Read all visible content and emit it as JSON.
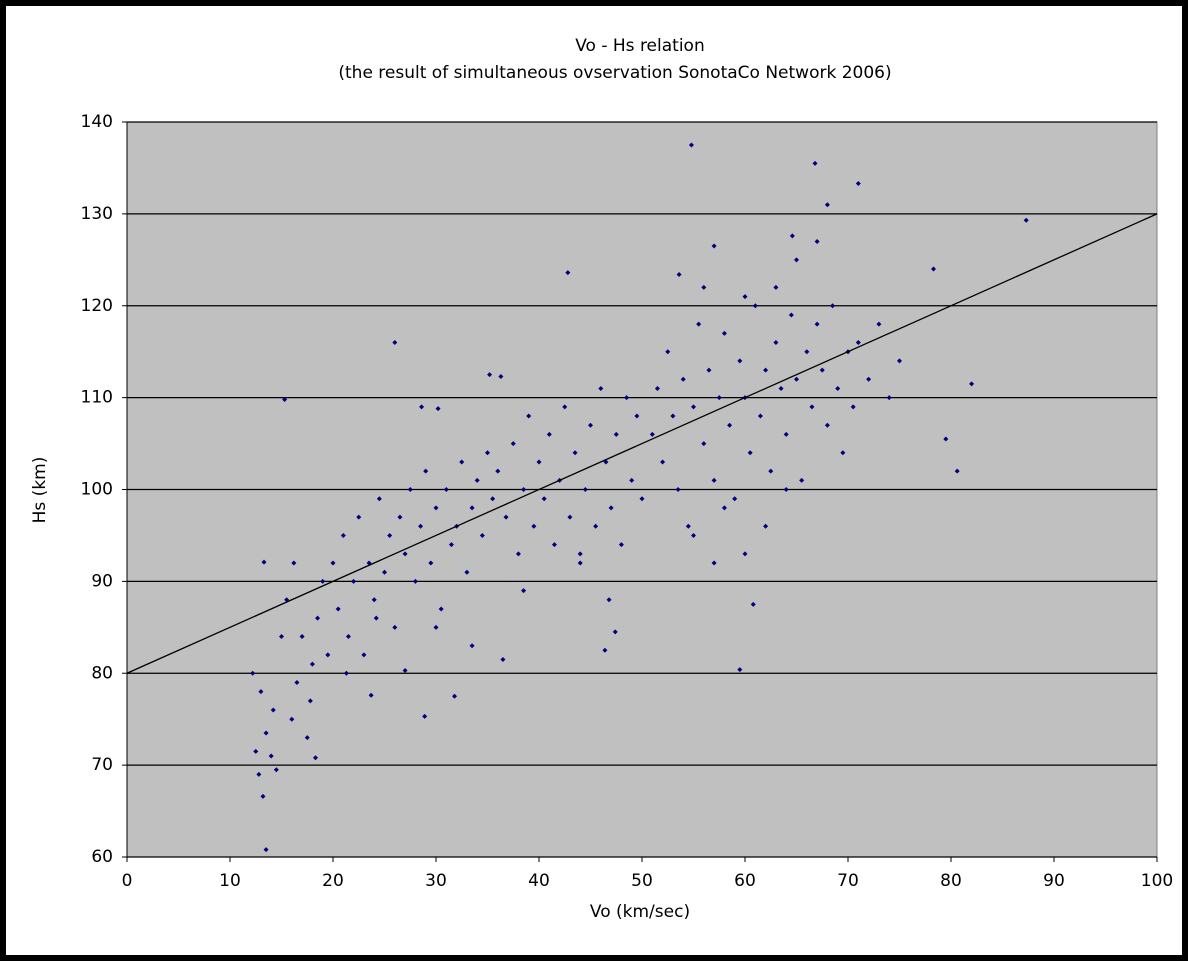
{
  "chart_data": {
    "type": "scatter",
    "title": "Vo - Hs relation",
    "subtitle": "(the result of simultaneous ovservation SonotaCo Network 2006)",
    "x_label": "Vo (km/sec)",
    "y_label": "Hs (km)",
    "xlim": [
      0,
      100
    ],
    "xticks": [
      0,
      10,
      20,
      30,
      40,
      50,
      60,
      70,
      80,
      90,
      100
    ],
    "ylim": [
      60,
      140
    ],
    "yticks": [
      60,
      70,
      80,
      90,
      100,
      110,
      120,
      130,
      140
    ],
    "grid": true,
    "plot_background": "#c0c0c0",
    "points": {
      "color": "#000080",
      "x": [
        12.2,
        12.5,
        12.8,
        13,
        13.5,
        14,
        14.5,
        14.2,
        15,
        15.5,
        16,
        16.5,
        17,
        17.5,
        18,
        18.5,
        19,
        19.5,
        20,
        20.5,
        21,
        21.5,
        22,
        22.5,
        23,
        23.5,
        24,
        24.5,
        25,
        25.5,
        26,
        26.5,
        27,
        27.5,
        28,
        28.5,
        29,
        29.5,
        30,
        30.5,
        31,
        31.5,
        32,
        32.5,
        33,
        33.5,
        34,
        34.5,
        35,
        35.5,
        16.2,
        13.3,
        17.8,
        18.3,
        21.3,
        24.2,
        27,
        30,
        33.5,
        36.5,
        36,
        36.8,
        37.5,
        38,
        38.5,
        39,
        39.5,
        40,
        40.5,
        41,
        41.5,
        42,
        42.5,
        43,
        43.5,
        44,
        44.5,
        45,
        45.5,
        46,
        46.5,
        47,
        47.5,
        48,
        48.5,
        49,
        49.5,
        50,
        35.2,
        36.3,
        28.6,
        30.2,
        38.5,
        44,
        46.8,
        51,
        51.5,
        52,
        52.5,
        53,
        53.5,
        54,
        54.5,
        55,
        55.5,
        56,
        56.5,
        57,
        57.5,
        58,
        58.5,
        59,
        59.5,
        60,
        60.5,
        61,
        61.5,
        62,
        62.5,
        63,
        63.5,
        64,
        64.5,
        65,
        65.5,
        66,
        66.5,
        67,
        67.5,
        68,
        68.5,
        69,
        69.5,
        70,
        70.5,
        71,
        72,
        73,
        74,
        75,
        55,
        57,
        58,
        60,
        62,
        64,
        56,
        60,
        63,
        65,
        67,
        57,
        68,
        64.6,
        53.6,
        54.8,
        66.8,
        71,
        87.3,
        42.8,
        26,
        15.3,
        13.5,
        13.2,
        60.8,
        59.5,
        46.4,
        47.4,
        82,
        80.6,
        79.5,
        78.3,
        31.8,
        28.9,
        23.7
      ],
      "y": [
        80,
        71.5,
        69,
        78,
        73.5,
        71,
        69.5,
        76,
        84,
        88,
        75,
        79,
        84,
        73,
        81,
        86,
        90,
        82,
        92,
        87,
        95,
        84,
        90,
        97,
        82,
        92,
        88,
        99,
        91,
        95,
        85,
        97,
        93,
        100,
        90,
        96,
        102,
        92,
        98,
        87,
        100,
        94,
        96,
        103,
        91,
        98,
        101,
        95,
        104,
        99,
        92,
        92.1,
        77,
        70.8,
        80,
        86,
        80.3,
        85,
        83,
        81.5,
        102,
        97,
        105,
        93,
        100,
        108,
        96,
        103,
        99,
        106,
        94,
        101,
        109,
        97,
        104,
        92,
        100,
        107,
        96,
        111,
        103,
        98,
        106,
        94,
        110,
        101,
        108,
        99,
        112.5,
        112.3,
        109,
        108.8,
        89,
        93,
        88,
        106,
        111,
        103,
        115,
        108,
        100,
        112,
        96,
        109,
        118,
        105,
        113,
        101,
        110,
        117,
        107,
        99,
        114,
        110,
        104,
        120,
        108,
        113,
        102,
        116,
        111,
        106,
        119,
        112,
        101,
        115,
        109,
        118,
        113,
        107,
        120,
        111,
        104,
        115,
        109,
        116,
        112,
        118,
        110,
        114,
        95,
        92,
        98,
        93,
        96,
        100,
        122,
        121,
        122,
        125,
        127,
        126.5,
        131,
        127.6,
        123.4,
        137.5,
        135.5,
        133.3,
        129.3,
        123.6,
        116,
        109.8,
        60.8,
        66.6,
        87.5,
        80.4,
        82.5,
        84.5,
        111.5,
        102,
        105.5,
        124,
        77.5,
        75.3,
        77.6
      ]
    },
    "trendline": {
      "color": "#000000",
      "x": [
        0,
        100
      ],
      "y": [
        80,
        130
      ]
    }
  }
}
